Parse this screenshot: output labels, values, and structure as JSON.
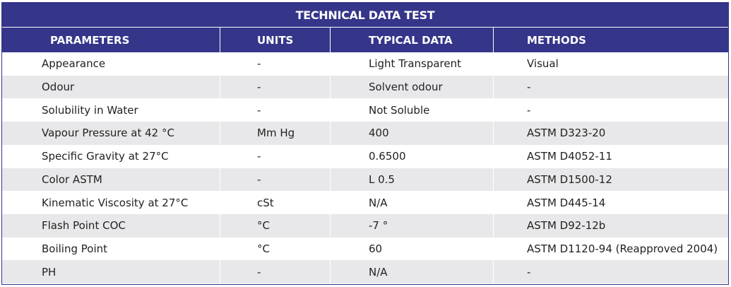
{
  "table": {
    "title": "TECHNICAL DATA TEST",
    "columns": [
      "PARAMETERS",
      "UNITS",
      "TYPICAL DATA",
      "METHODS"
    ],
    "rows": [
      [
        "Appearance",
        "-",
        "Light Transparent",
        "Visual"
      ],
      [
        "Odour",
        "-",
        "Solvent odour",
        "-"
      ],
      [
        "Solubility in Water",
        "-",
        "Not Soluble",
        "-"
      ],
      [
        "Vapour Pressure at 42 °C",
        "Mm Hg",
        "400",
        "ASTM D323-20"
      ],
      [
        "Specific Gravity at 27°C",
        "-",
        "0.6500",
        "ASTM D4052-11"
      ],
      [
        "Color ASTM",
        "-",
        "L 0.5",
        "ASTM D1500-12"
      ],
      [
        "Kinematic Viscosity at 27°C",
        "cSt",
        "N/A",
        "ASTM D445-14"
      ],
      [
        "Flash Point COC",
        "°C",
        "-7 °",
        "ASTM D92-12b"
      ],
      [
        "Boiling Point",
        "°C",
        "60",
        "ASTM D1120-94 (Reapproved 2004)"
      ],
      [
        "PH",
        "-",
        "N/A",
        "-"
      ]
    ]
  }
}
